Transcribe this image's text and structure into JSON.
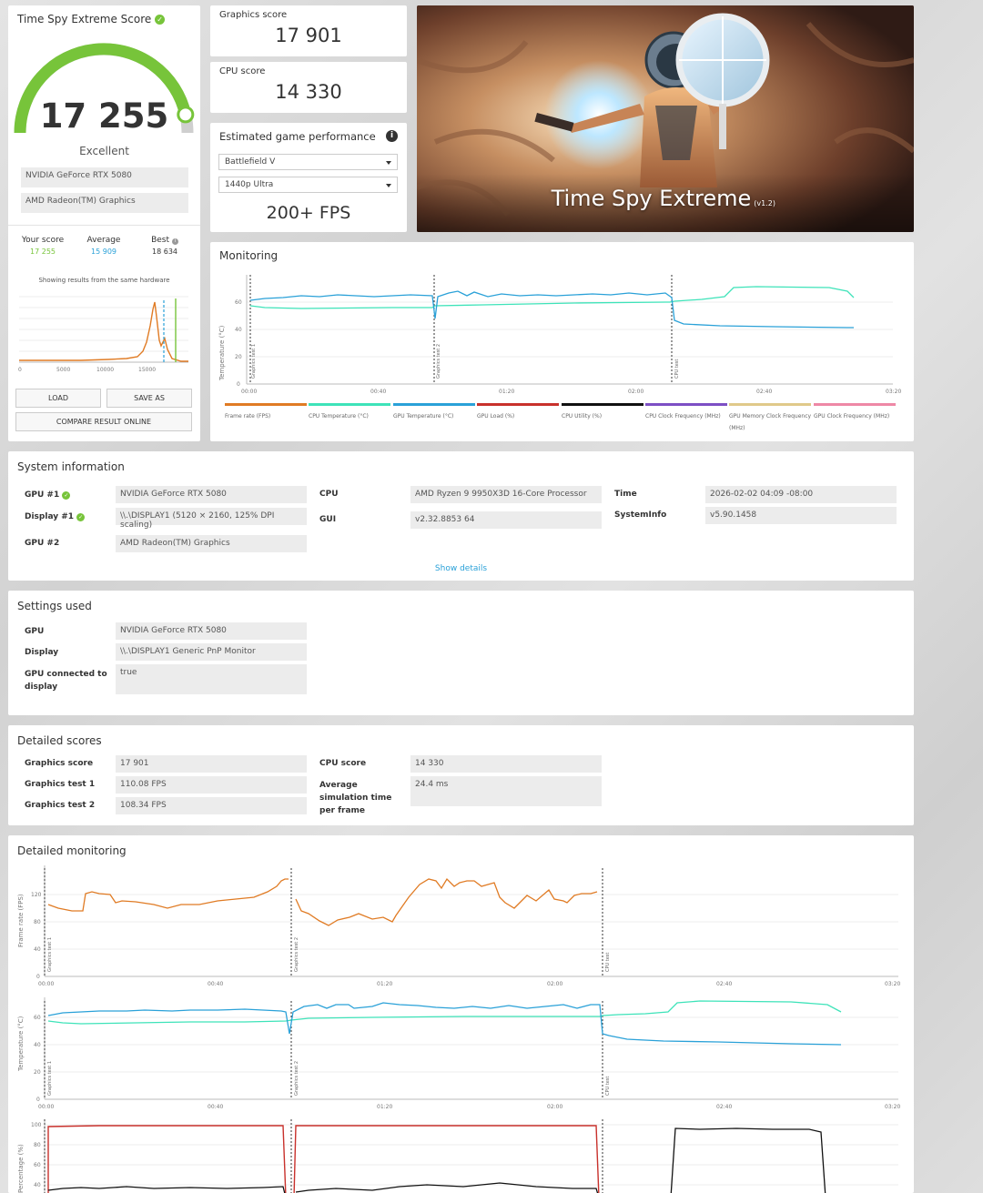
{
  "score_card": {
    "title": "Time Spy Extreme Score",
    "score": "17 255",
    "rating": "Excellent",
    "gpu_1": "NVIDIA GeForce RTX 5080",
    "gpu_2": "AMD Radeon(TM) Graphics",
    "gauge_fraction": 0.93,
    "your_score_label": "Your score",
    "your_score": "17 255",
    "average_label": "Average",
    "average": "15 909",
    "best_label": "Best",
    "best": "18 634",
    "same_hw_note": "Showing results from the same hardware",
    "dist_ticks": [
      "0",
      "5000",
      "10000",
      "15000"
    ],
    "load_label": "LOAD",
    "save_label": "SAVE AS",
    "compare_label": "COMPARE RESULT ONLINE",
    "colors": {
      "green": "#77c43a",
      "blue": "#2aa1d8"
    }
  },
  "graphics_score": {
    "label": "Graphics score",
    "value": "17 901"
  },
  "cpu_score": {
    "label": "CPU score",
    "value": "14 330"
  },
  "game_perf": {
    "title": "Estimated game performance",
    "game": "Battlefield V",
    "preset": "1440p Ultra",
    "fps": "200+ FPS"
  },
  "banner": {
    "title": "Time Spy Extreme",
    "version": "(v1.2)"
  },
  "monitoring": {
    "title": "Monitoring",
    "ylabel": "Temperature (°C)",
    "yticks": [
      "0",
      "20",
      "40",
      "60"
    ],
    "xticks": [
      "00:00",
      "00:40",
      "01:20",
      "02:00",
      "02:40",
      "03:20"
    ],
    "markers": [
      "Graphics test 1",
      "Graphics test 2",
      "CPU test"
    ],
    "legend": [
      {
        "label": "Frame rate (FPS)",
        "color": "#e07b24"
      },
      {
        "label": "CPU Temperature (°C)",
        "color": "#3ee3b9"
      },
      {
        "label": "GPU Temperature (°C)",
        "color": "#2aa1d8"
      },
      {
        "label": "GPU Load (%)",
        "color": "#c8312c"
      },
      {
        "label": "CPU Utility (%)",
        "color": "#111111"
      },
      {
        "label": "CPU Clock Frequency (MHz)",
        "color": "#7d4fc4"
      },
      {
        "label": "GPU Memory Clock Frequency (MHz)",
        "color": "#e0c98a"
      },
      {
        "label": "GPU Clock Frequency (MHz)",
        "color": "#ee88a6"
      }
    ]
  },
  "system_info": {
    "title": "System information",
    "gpu1_label": "GPU #1",
    "gpu1": "NVIDIA GeForce RTX 5080",
    "display1_label": "Display #1",
    "display1": "\\\\.\\DISPLAY1 (5120 × 2160, 125% DPI scaling)",
    "gpu2_label": "GPU #2",
    "gpu2": "AMD Radeon(TM) Graphics",
    "cpu_label": "CPU",
    "cpu": "AMD Ryzen 9 9950X3D 16-Core Processor",
    "gui_label": "GUI",
    "gui": "v2.32.8853 64",
    "time_label": "Time",
    "time": "2026-02-02 04:09 -08:00",
    "sysinfo_label": "SystemInfo",
    "sysinfo": "v5.90.1458",
    "show_details": "Show details"
  },
  "settings": {
    "title": "Settings used",
    "gpu_label": "GPU",
    "gpu": "NVIDIA GeForce RTX 5080",
    "display_label": "Display",
    "display": "\\\\.\\DISPLAY1 Generic PnP Monitor",
    "gpu_conn_label": "GPU connected to display",
    "gpu_conn": "true"
  },
  "detailed_scores": {
    "title": "Detailed scores",
    "graphics_label": "Graphics score",
    "graphics": "17 901",
    "gt1_label": "Graphics test 1",
    "gt1": "110.08 FPS",
    "gt2_label": "Graphics test 2",
    "gt2": "108.34 FPS",
    "cpu_label": "CPU score",
    "cpu": "14 330",
    "avg_sim_label": "Average simulation time per frame",
    "avg_sim": "24.4 ms"
  },
  "detailed_monitoring": {
    "title": "Detailed monitoring",
    "fps_ylabel": "Frame rate (FPS)",
    "fps_yticks": [
      "0",
      "40",
      "80",
      "120"
    ],
    "temp_ylabel": "Temperature (°C)",
    "temp_yticks": [
      "0",
      "20",
      "40",
      "60"
    ],
    "pct_ylabel": "Percentage (%)",
    "pct_yticks": [
      "40",
      "60",
      "80",
      "100"
    ],
    "xticks": [
      "00:00",
      "00:40",
      "01:20",
      "02:00",
      "02:40",
      "03:20"
    ],
    "markers": [
      "Graphics test 1",
      "Graphics test 2",
      "CPU test"
    ]
  }
}
